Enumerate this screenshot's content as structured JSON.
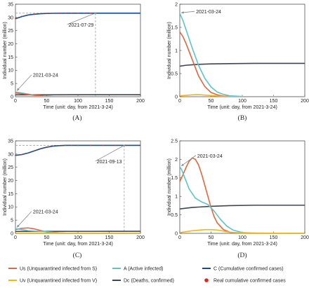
{
  "figure": {
    "panel_labels": [
      "(A)",
      "(B)",
      "(C)",
      "(D)"
    ]
  },
  "colors": {
    "Us": "#e8643a",
    "Uv": "#f2b51c",
    "A": "#5bc5cc",
    "Dc": "#3d4654",
    "C": "#0f4f8f",
    "Real": "#e0261c",
    "guide": "#a7a7a7"
  },
  "legend": [
    {
      "key": "Us",
      "label": "Us (Unquarantined infected from S)",
      "marker": "line"
    },
    {
      "key": "A",
      "label": "A (Active infected)",
      "marker": "line"
    },
    {
      "key": "C",
      "label": "C (Cumulative confirmed cases)",
      "marker": "line"
    },
    {
      "key": "Uv",
      "label": "Uv (Unquarantined infected from V)",
      "marker": "line"
    },
    {
      "key": "Dc",
      "label": "Dc (Deaths, confirmed)",
      "marker": "line"
    },
    {
      "key": "Real",
      "label": "Real cumulative confirmed cases",
      "marker": "dot"
    }
  ],
  "chart_data": [
    {
      "type": "line",
      "panel": "(A)",
      "xlabel": "Time (unit: day, from 2021-3-24)",
      "ylabel": "Individual number (million)",
      "xlim": [
        0,
        200
      ],
      "ylim": [
        0,
        35
      ],
      "xticks": [
        0,
        50,
        100,
        150,
        200
      ],
      "yticks": [
        0,
        5,
        10,
        15,
        20,
        25,
        30,
        35
      ],
      "grid": false,
      "series": [
        {
          "key": "C",
          "x": [
            0,
            10,
            20,
            30,
            40,
            50,
            60,
            80,
            100,
            120,
            150,
            200
          ],
          "y": [
            29.5,
            30.3,
            30.9,
            31.2,
            31.4,
            31.5,
            31.55,
            31.6,
            31.6,
            31.6,
            31.6,
            31.6
          ]
        },
        {
          "key": "Dc",
          "x": [
            0,
            50,
            100,
            150,
            200
          ],
          "y": [
            0.7,
            0.72,
            0.74,
            0.75,
            0.75
          ]
        },
        {
          "key": "A",
          "x": [
            0,
            15,
            30,
            45,
            60,
            80,
            200
          ],
          "y": [
            1.8,
            1.2,
            0.6,
            0.25,
            0.08,
            0.01,
            0
          ]
        },
        {
          "key": "Us",
          "x": [
            0,
            15,
            30,
            45,
            60,
            80,
            200
          ],
          "y": [
            1.4,
            1.0,
            0.5,
            0.18,
            0.05,
            0.01,
            0
          ]
        },
        {
          "key": "Uv",
          "x": [
            0,
            20,
            40,
            60,
            80,
            200
          ],
          "y": [
            0.02,
            0.05,
            0.05,
            0.02,
            0.005,
            0
          ]
        },
        {
          "key": "Real",
          "x": [
            0,
            10,
            20,
            30,
            40,
            50,
            60,
            70,
            80,
            90,
            100,
            110,
            120,
            128
          ],
          "y": [
            29.6,
            30.4,
            30.9,
            31.2,
            31.4,
            31.5,
            31.55,
            31.58,
            31.6,
            31.6,
            31.6,
            31.6,
            31.6,
            31.6
          ]
        }
      ],
      "annotations": [
        {
          "text": "2021-07-29",
          "x": 128,
          "y": 31.6,
          "label_x": 85,
          "label_y": 26.5
        },
        {
          "text": "2021-03-24",
          "x": 0,
          "y": 2,
          "label_x": 28,
          "label_y": 7.5
        }
      ],
      "guides": {
        "vline_x": 128,
        "hline_y": 31.6
      }
    },
    {
      "type": "line",
      "panel": "(B)",
      "xlabel": "Time (unit: day, from 2021-3-24)",
      "ylabel": "Individual number (million)",
      "xlim": [
        0,
        200
      ],
      "ylim": [
        0,
        2
      ],
      "xticks": [
        0,
        50,
        100,
        150,
        200
      ],
      "yticks": [
        0,
        0.5,
        1,
        1.5,
        2
      ],
      "grid": false,
      "series": [
        {
          "key": "Dc",
          "x": [
            0,
            10,
            20,
            30,
            50,
            80,
            120,
            200
          ],
          "y": [
            0.66,
            0.68,
            0.69,
            0.7,
            0.71,
            0.715,
            0.72,
            0.72
          ]
        },
        {
          "key": "A",
          "x": [
            0,
            5,
            10,
            20,
            30,
            40,
            50,
            60,
            70,
            80,
            100,
            130,
            200
          ],
          "y": [
            1.8,
            1.65,
            1.45,
            1.05,
            0.68,
            0.4,
            0.21,
            0.1,
            0.05,
            0.02,
            0.005,
            0,
            0
          ]
        },
        {
          "key": "Us",
          "x": [
            0,
            5,
            10,
            20,
            30,
            40,
            50,
            60,
            70,
            80,
            100,
            130,
            200
          ],
          "y": [
            1.4,
            1.3,
            1.15,
            0.8,
            0.45,
            0.22,
            0.09,
            0.04,
            0.015,
            0.005,
            0,
            0,
            0
          ]
        },
        {
          "key": "Uv",
          "x": [
            0,
            10,
            20,
            30,
            40,
            50,
            60,
            70,
            80,
            100,
            200
          ],
          "y": [
            0.02,
            0.03,
            0.04,
            0.045,
            0.035,
            0.025,
            0.015,
            0.008,
            0.004,
            0.001,
            0
          ]
        }
      ],
      "annotations": [
        {
          "text": "2021-03-24",
          "x": 0,
          "y": 1.8,
          "label_x": 26,
          "label_y": 1.8
        }
      ]
    },
    {
      "type": "line",
      "panel": "(C)",
      "xlabel": "Time (unit: day, from 2021-3-24)",
      "ylabel": "Individual number (million)",
      "xlim": [
        0,
        200
      ],
      "ylim": [
        0,
        35
      ],
      "xticks": [
        0,
        50,
        100,
        150,
        200
      ],
      "yticks": [
        0,
        5,
        10,
        15,
        20,
        25,
        30,
        35
      ],
      "grid": false,
      "series": [
        {
          "key": "C",
          "x": [
            0,
            10,
            20,
            30,
            40,
            50,
            60,
            70,
            80,
            100,
            130,
            200
          ],
          "y": [
            29.5,
            29.8,
            30.4,
            31.2,
            32.0,
            32.6,
            33.0,
            33.2,
            33.3,
            33.3,
            33.3,
            33.3
          ]
        },
        {
          "key": "Dc",
          "x": [
            0,
            50,
            100,
            150,
            200
          ],
          "y": [
            0.7,
            0.74,
            0.76,
            0.77,
            0.77
          ]
        },
        {
          "key": "Us",
          "x": [
            0,
            10,
            20,
            30,
            40,
            50,
            60,
            70,
            80,
            200
          ],
          "y": [
            1.4,
            1.9,
            2.05,
            1.7,
            1.1,
            0.5,
            0.15,
            0.04,
            0.01,
            0
          ]
        },
        {
          "key": "A",
          "x": [
            0,
            10,
            20,
            30,
            40,
            50,
            60,
            70,
            80,
            100,
            200
          ],
          "y": [
            1.8,
            1.4,
            1.05,
            0.85,
            0.75,
            0.62,
            0.4,
            0.2,
            0.08,
            0.01,
            0
          ]
        },
        {
          "key": "Uv",
          "x": [
            0,
            25,
            45,
            60,
            80,
            100,
            200
          ],
          "y": [
            0.02,
            0.06,
            0.08,
            0.06,
            0.03,
            0.01,
            0
          ]
        },
        {
          "key": "Real",
          "x": [
            0,
            10,
            20,
            30,
            40,
            50,
            60,
            70,
            80,
            90,
            100,
            120,
            140,
            160,
            174
          ],
          "y": [
            29.5,
            29.8,
            30.4,
            31.2,
            32.0,
            32.6,
            33.0,
            33.2,
            33.3,
            33.3,
            33.3,
            33.3,
            33.3,
            33.3,
            33.3
          ]
        }
      ],
      "annotations": [
        {
          "text": "2021-09-13",
          "x": 174,
          "y": 33.3,
          "label_x": 130,
          "label_y": 26.5
        },
        {
          "text": "2021-03-24",
          "x": 0,
          "y": 2,
          "label_x": 28,
          "label_y": 7.5
        }
      ],
      "guides": {
        "vline_x": 174,
        "hline_y": 33.3
      }
    },
    {
      "type": "line",
      "panel": "(D)",
      "xlabel": "Time (unit: day, from 2021-3-24)",
      "ylabel": "Individual number (million)",
      "xlim": [
        0,
        200
      ],
      "ylim": [
        0,
        2.5
      ],
      "xticks": [
        0,
        50,
        100,
        150,
        200
      ],
      "yticks": [
        0,
        0.5,
        1,
        1.5,
        2,
        2.5
      ],
      "grid": false,
      "series": [
        {
          "key": "Dc",
          "x": [
            0,
            10,
            20,
            30,
            50,
            80,
            120,
            200
          ],
          "y": [
            0.66,
            0.68,
            0.7,
            0.71,
            0.73,
            0.75,
            0.76,
            0.76
          ]
        },
        {
          "key": "Us",
          "x": [
            0,
            5,
            10,
            15,
            20,
            25,
            30,
            35,
            40,
            45,
            50,
            55,
            60,
            70,
            80,
            100,
            200
          ],
          "y": [
            1.4,
            1.58,
            1.78,
            1.95,
            2.04,
            2.0,
            1.85,
            1.6,
            1.3,
            1.0,
            0.7,
            0.45,
            0.28,
            0.1,
            0.03,
            0,
            0
          ]
        },
        {
          "key": "A",
          "x": [
            0,
            3,
            8,
            15,
            25,
            35,
            45,
            55,
            65,
            75,
            85,
            100,
            130,
            200
          ],
          "y": [
            1.8,
            1.72,
            1.5,
            1.2,
            0.95,
            0.85,
            0.78,
            0.6,
            0.38,
            0.2,
            0.09,
            0.02,
            0,
            0
          ]
        },
        {
          "key": "Uv",
          "x": [
            0,
            20,
            40,
            50,
            60,
            70,
            80,
            100,
            200
          ],
          "y": [
            0.02,
            0.07,
            0.1,
            0.1,
            0.09,
            0.06,
            0.03,
            0.01,
            0
          ]
        }
      ],
      "annotations": [
        {
          "text": "2021-03-24",
          "x": 0,
          "y": 1.8,
          "label_x": 28,
          "label_y": 2.05
        }
      ]
    }
  ]
}
